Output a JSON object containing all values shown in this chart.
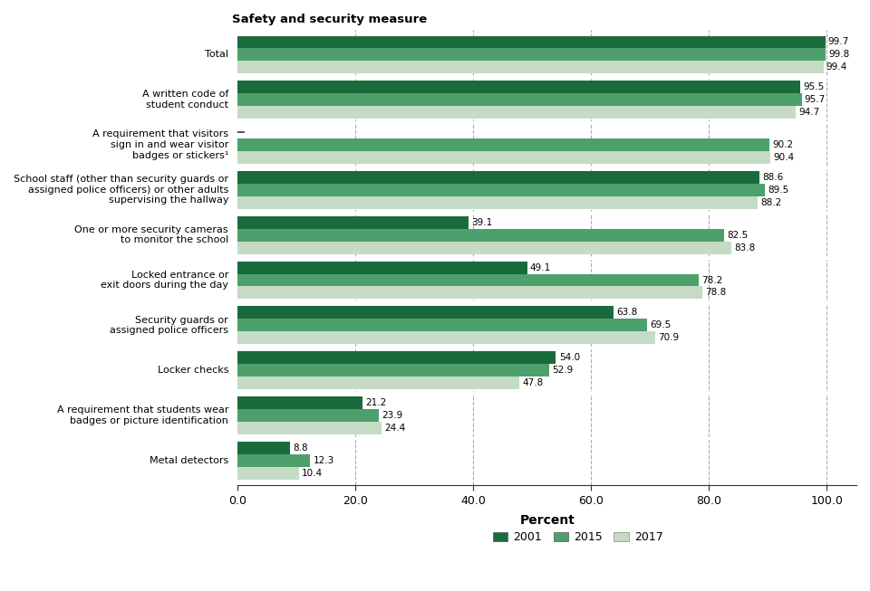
{
  "categories": [
    "Metal detectors",
    "A requirement that students wear\nbadges or picture identification",
    "Locker checks",
    "Security guards or\nassigned police officers",
    "Locked entrance or\nexit doors during the day",
    "One or more security cameras\nto monitor the school",
    "School staff (other than security guards or\nassigned police officers) or other adults\nsupervising the hallway",
    "A requirement that visitors\nsign in and wear visitor\nbadges or stickers¹",
    "A written code of\nstudent conduct",
    "Total"
  ],
  "values_2001": [
    8.8,
    21.2,
    54.0,
    63.8,
    49.1,
    39.1,
    88.6,
    null,
    95.5,
    99.7
  ],
  "values_2015": [
    12.3,
    23.9,
    52.9,
    69.5,
    78.2,
    82.5,
    89.5,
    90.2,
    95.7,
    99.8
  ],
  "values_2017": [
    10.4,
    24.4,
    47.8,
    70.9,
    78.8,
    83.8,
    88.2,
    90.4,
    94.7,
    99.4
  ],
  "color_2001": "#1a6b3c",
  "color_2015": "#4da06b",
  "color_2017": "#c5dbc5",
  "bar_height": 0.28,
  "xlim": [
    0,
    105
  ],
  "xlabel": "Percent",
  "ylabel_title": "Safety and security measure",
  "legend_labels": [
    "2001",
    "2015",
    "2017"
  ],
  "grid_ticks": [
    0,
    20,
    40,
    60,
    80,
    100
  ],
  "tick_labels": [
    "0.0",
    "20.0",
    "40.0",
    "60.0",
    "80.0",
    "100.0"
  ],
  "value_fontsize": 7.5,
  "label_fontsize": 8.0,
  "title_fontsize": 9.5,
  "axis_fontsize": 9.0,
  "legend_fontsize": 9.0
}
